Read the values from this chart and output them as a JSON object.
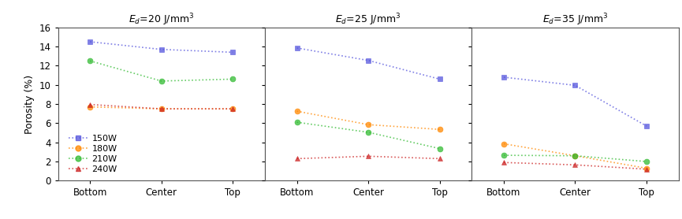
{
  "panels": [
    {
      "title": "$E_d$=20 J/mm$^3$",
      "series": {
        "150W": [
          14.5,
          13.7,
          13.4
        ],
        "180W": [
          7.7,
          7.5,
          7.5
        ],
        "210W": [
          12.5,
          10.4,
          10.6
        ],
        "240W": [
          7.95,
          7.5,
          7.5
        ]
      }
    },
    {
      "title": "$E_d$=25 J/mm$^3$",
      "series": {
        "150W": [
          13.85,
          12.55,
          10.6
        ],
        "180W": [
          7.25,
          5.85,
          5.35
        ],
        "210W": [
          6.1,
          5.05,
          3.35
        ],
        "240W": [
          2.3,
          2.55,
          2.3
        ]
      }
    },
    {
      "title": "$E_d$=35 J/mm$^3$",
      "series": {
        "150W": [
          10.8,
          9.95,
          5.7
        ],
        "180W": [
          3.85,
          2.6,
          1.3
        ],
        "210W": [
          2.65,
          2.6,
          2.0
        ],
        "240W": [
          1.9,
          1.65,
          1.2
        ]
      }
    }
  ],
  "x_labels": [
    "Bottom",
    "Center",
    "Top"
  ],
  "ylabel": "Porosity (%)",
  "ylim": [
    0,
    16
  ],
  "yticks": [
    0,
    2,
    4,
    6,
    8,
    10,
    12,
    14,
    16
  ],
  "series_styles": {
    "150W": {
      "color": "#5555dd",
      "marker": "s",
      "linestyle": ":",
      "alpha": 0.75
    },
    "180W": {
      "color": "#ff8800",
      "marker": "o",
      "linestyle": ":",
      "alpha": 0.75
    },
    "210W": {
      "color": "#33bb33",
      "marker": "o",
      "linestyle": ":",
      "alpha": 0.75
    },
    "240W": {
      "color": "#cc2222",
      "marker": "^",
      "linestyle": ":",
      "alpha": 0.75
    }
  },
  "legend_labels": [
    "150W",
    "180W",
    "210W",
    "240W"
  ],
  "background_color": "#ffffff",
  "markersize": 5,
  "linewidth": 1.2,
  "title_fontsize": 9,
  "label_fontsize": 9,
  "tick_fontsize": 8.5
}
